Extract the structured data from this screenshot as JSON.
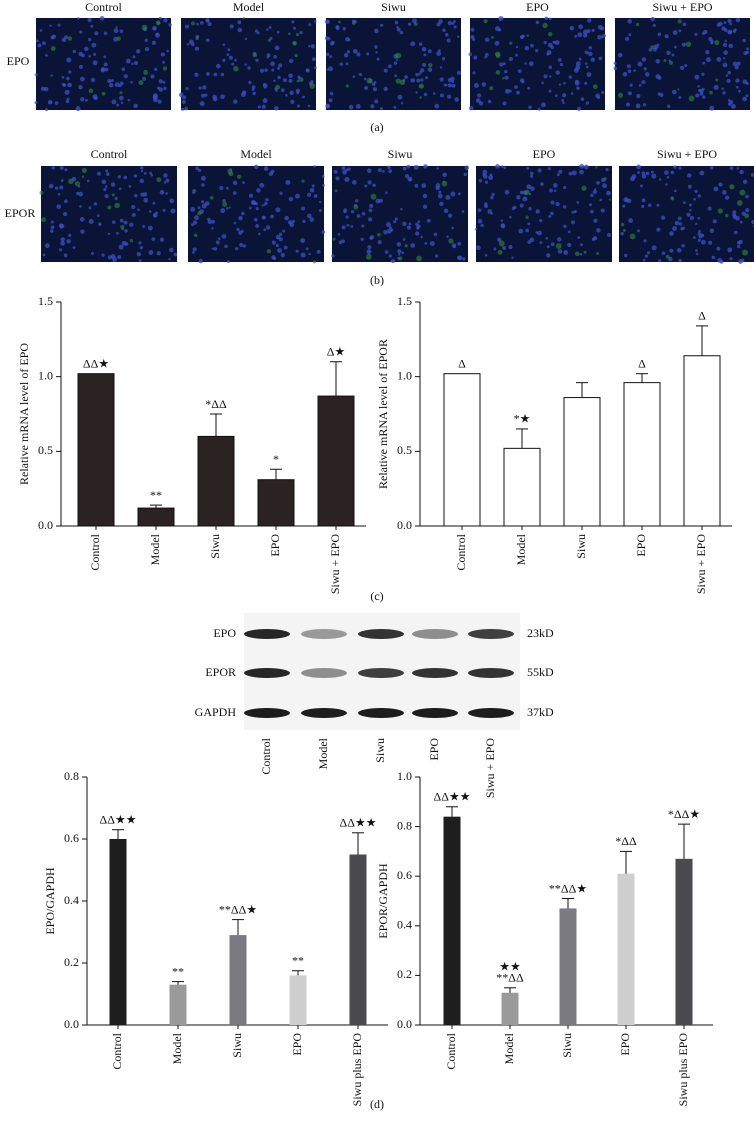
{
  "panels": {
    "a": {
      "label": "(a)",
      "row_label": "EPO",
      "columns": [
        "Control",
        "Model",
        "Siwu",
        "EPO",
        "Siwu + EPO"
      ]
    },
    "b": {
      "label": "(b)",
      "row_label": "EPOR",
      "columns": [
        "Control",
        "Model",
        "Siwu",
        "EPO",
        "Siwu + EPO"
      ]
    },
    "c": {
      "label": "(c)"
    },
    "blot": {
      "rows": [
        "EPO",
        "EPOR",
        "GAPDH"
      ],
      "sizes": [
        "23kD",
        "55kD",
        "37kD"
      ],
      "lanes": [
        "Control",
        "Model",
        "Siwu",
        "EPO",
        "Siwu + EPO"
      ]
    },
    "d": {
      "label": "(d)"
    }
  },
  "chart_data": [
    {
      "type": "bar",
      "ylabel": "Relative mRNA level of EPO",
      "categories": [
        "Control",
        "Model",
        "Siwu",
        "EPO",
        "Siwu + EPO"
      ],
      "values": [
        1.02,
        0.12,
        0.6,
        0.31,
        0.87
      ],
      "errors": [
        0,
        0.02,
        0.15,
        0.07,
        0.23
      ],
      "annotations": [
        "ΔΔ★",
        "**",
        "*ΔΔ",
        "*",
        "Δ★"
      ],
      "colors": [
        "#2b2323",
        "#2b2323",
        "#2b2323",
        "#2b2323",
        "#2b2323"
      ],
      "edgecolor": "#111111",
      "ylim": [
        0,
        1.5
      ],
      "yticks": [
        {
          "value": 0,
          "label": "0.0"
        },
        0.5,
        {
          "value": 1,
          "label": "1.0"
        },
        1.5
      ]
    },
    {
      "type": "bar",
      "ylabel": "Relative mRNA level of EPOR",
      "categories": [
        "Control",
        "Model",
        "Siwu",
        "EPO",
        "Siwu + EPO"
      ],
      "values": [
        1.02,
        0.52,
        0.86,
        0.96,
        1.14
      ],
      "errors": [
        0,
        0.13,
        0.1,
        0.06,
        0.2
      ],
      "annotations": [
        "Δ",
        "*★",
        null,
        "Δ",
        "Δ"
      ],
      "colors": [
        "#ffffff",
        "#ffffff",
        "#ffffff",
        "#ffffff",
        "#ffffff"
      ],
      "edgecolor": "#111111",
      "ylim": [
        0,
        1.5
      ],
      "yticks": [
        {
          "value": 0,
          "label": "0.0"
        },
        0.5,
        {
          "value": 1,
          "label": "1.0"
        },
        1.5
      ]
    },
    {
      "type": "bar",
      "ylabel": "EPO/GAPDH",
      "categories": [
        "Control",
        "Model",
        "Siwu",
        "EPO",
        "Siwu plus EPO"
      ],
      "values": [
        0.6,
        0.13,
        0.29,
        0.16,
        0.55
      ],
      "errors": [
        0.03,
        0.01,
        0.05,
        0.015,
        0.07
      ],
      "annotations": [
        "ΔΔ★★",
        "**",
        "**ΔΔ★",
        "**",
        "ΔΔ★★"
      ],
      "colors": [
        "#1e1e1e",
        "#9a9a9a",
        "#7a7a80",
        "#cfcfcf",
        "#4a4a4f"
      ],
      "edgecolor": "none",
      "ylim": [
        0,
        0.8
      ],
      "yticks": [
        {
          "value": 0,
          "label": "0.0"
        },
        0.2,
        0.4,
        0.6,
        0.8
      ]
    },
    {
      "type": "bar",
      "ylabel": "EPOR/GAPDH",
      "categories": [
        "Control",
        "Model",
        "Siwu",
        "EPO",
        "Siwu plus EPO"
      ],
      "values": [
        0.84,
        0.13,
        0.47,
        0.61,
        0.67
      ],
      "errors": [
        0.04,
        0.02,
        0.04,
        0.09,
        0.14
      ],
      "annotations": [
        "ΔΔ★★",
        [
          "★★",
          "**ΔΔ"
        ],
        "**ΔΔ★",
        "*ΔΔ",
        "*ΔΔ★"
      ],
      "colors": [
        "#1e1e1e",
        "#9a9a9a",
        "#7a7a80",
        "#cfcfcf",
        "#4a4a4f"
      ],
      "edgecolor": "none",
      "ylim": [
        0,
        1
      ],
      "yticks": [
        {
          "value": 0,
          "label": "0.0"
        },
        0.2,
        0.4,
        0.6,
        0.8,
        {
          "value": 1,
          "label": "1.0"
        }
      ]
    }
  ]
}
